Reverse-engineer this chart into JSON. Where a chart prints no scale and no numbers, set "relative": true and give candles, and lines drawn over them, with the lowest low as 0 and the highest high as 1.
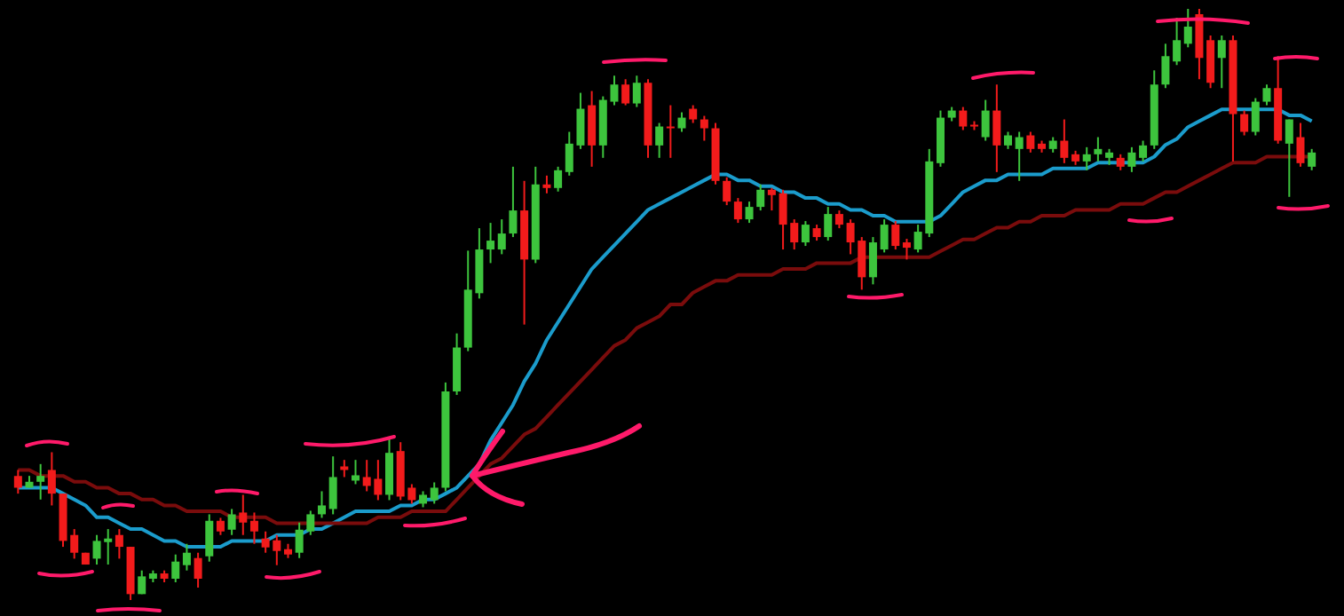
{
  "chart_data": {
    "type": "candlestick",
    "relative": true,
    "categories": [
      null,
      null,
      null,
      null,
      null,
      null,
      null,
      null,
      null,
      null,
      null,
      null,
      null,
      null,
      null,
      null,
      null,
      null,
      null,
      null,
      null,
      null,
      null,
      null,
      null,
      null,
      null,
      null,
      null,
      null,
      null,
      null,
      null,
      null,
      null,
      null,
      null,
      null,
      null,
      null,
      null,
      null,
      null,
      null,
      null,
      null,
      null,
      null,
      null,
      null,
      null,
      null,
      null,
      null,
      null,
      null,
      null,
      null,
      null,
      null,
      null,
      null,
      null,
      null,
      null,
      null,
      null,
      null,
      null,
      null,
      null,
      null,
      null,
      null,
      null,
      null,
      null,
      null,
      null,
      null,
      null,
      null,
      null,
      null,
      null,
      null,
      null,
      null,
      null,
      null,
      null,
      null,
      null,
      null,
      null,
      null,
      null,
      null,
      null,
      null,
      null,
      null,
      null,
      null,
      null,
      null,
      null,
      null,
      null,
      null,
      null,
      null,
      null,
      null,
      null,
      null
    ],
    "ohlc": [
      [
        0.21,
        0.22,
        0.18,
        0.19
      ],
      [
        0.19,
        0.21,
        0.19,
        0.2
      ],
      [
        0.2,
        0.23,
        0.17,
        0.21
      ],
      [
        0.22,
        0.25,
        0.16,
        0.18
      ],
      [
        0.18,
        0.18,
        0.09,
        0.1
      ],
      [
        0.11,
        0.12,
        0.07,
        0.08
      ],
      [
        0.08,
        0.08,
        0.06,
        0.06
      ],
      [
        0.07,
        0.11,
        0.06,
        0.1
      ],
      [
        0.098,
        0.12,
        0.06,
        0.104
      ],
      [
        0.11,
        0.12,
        0.07,
        0.09
      ],
      [
        0.09,
        0.09,
        0,
        0.01
      ],
      [
        0.01,
        0.05,
        0.01,
        0.04
      ],
      [
        0.036,
        0.05,
        0.03,
        0.045
      ],
      [
        0.045,
        0.05,
        0.03,
        0.036
      ],
      [
        0.036,
        0.077,
        0.03,
        0.065
      ],
      [
        0.059,
        0.095,
        0.05,
        0.08
      ],
      [
        0.071,
        0.08,
        0.021,
        0.036
      ],
      [
        0.074,
        0.145,
        0.065,
        0.134
      ],
      [
        0.134,
        0.139,
        0.11,
        0.116
      ],
      [
        0.119,
        0.154,
        0.11,
        0.145
      ],
      [
        0.148,
        0.178,
        0.11,
        0.131
      ],
      [
        0.134,
        0.148,
        0.095,
        0.116
      ],
      [
        0.104,
        0.116,
        0.08,
        0.089
      ],
      [
        0.101,
        0.11,
        0.059,
        0.083
      ],
      [
        0.086,
        0.095,
        0.071,
        0.077
      ],
      [
        0.08,
        0.131,
        0.071,
        0.119
      ],
      [
        0.116,
        0.151,
        0.11,
        0.145
      ],
      [
        0.145,
        0.184,
        0.139,
        0.16
      ],
      [
        0.154,
        0.243,
        0.145,
        0.208
      ],
      [
        0.226,
        0.237,
        0.208,
        0.22
      ],
      [
        0.202,
        0.237,
        0.196,
        0.211
      ],
      [
        0.208,
        0.237,
        0.184,
        0.193
      ],
      [
        0.205,
        0.237,
        0.169,
        0.178
      ],
      [
        0.178,
        0.273,
        0.169,
        0.249
      ],
      [
        0.252,
        0.267,
        0.169,
        0.175
      ],
      [
        0.19,
        0.196,
        0.163,
        0.169
      ],
      [
        0.163,
        0.184,
        0.157,
        0.178
      ],
      [
        0.169,
        0.199,
        0.163,
        0.19
      ],
      [
        0.19,
        0.368,
        0.184,
        0.353
      ],
      [
        0.353,
        0.451,
        0.347,
        0.427
      ],
      [
        0.427,
        0.591,
        0.421,
        0.525
      ],
      [
        0.519,
        0.629,
        0.51,
        0.593
      ],
      [
        0.593,
        0.638,
        0.57,
        0.608
      ],
      [
        0.593,
        0.644,
        0.585,
        0.62
      ],
      [
        0.62,
        0.733,
        0.614,
        0.659
      ],
      [
        0.659,
        0.709,
        0.466,
        0.576
      ],
      [
        0.576,
        0.733,
        0.57,
        0.703
      ],
      [
        0.703,
        0.718,
        0.688,
        0.697
      ],
      [
        0.697,
        0.733,
        0.691,
        0.727
      ],
      [
        0.724,
        0.792,
        0.718,
        0.772
      ],
      [
        0.769,
        0.858,
        0.763,
        0.831
      ],
      [
        0.837,
        0.861,
        0.733,
        0.769
      ],
      [
        0.769,
        0.852,
        0.748,
        0.846
      ],
      [
        0.843,
        0.887,
        0.837,
        0.872
      ],
      [
        0.872,
        0.881,
        0.837,
        0.84
      ],
      [
        0.84,
        0.887,
        0.834,
        0.875
      ],
      [
        0.875,
        0.881,
        0.748,
        0.769
      ],
      [
        0.769,
        0.807,
        0.748,
        0.801
      ],
      [
        0.801,
        0.837,
        0.748,
        0.798
      ],
      [
        0.798,
        0.825,
        0.792,
        0.816
      ],
      [
        0.831,
        0.837,
        0.807,
        0.813
      ],
      [
        0.813,
        0.819,
        0.777,
        0.798
      ],
      [
        0.798,
        0.807,
        0.703,
        0.709
      ],
      [
        0.709,
        0.715,
        0.668,
        0.674
      ],
      [
        0.674,
        0.68,
        0.638,
        0.644
      ],
      [
        0.644,
        0.674,
        0.638,
        0.665
      ],
      [
        0.665,
        0.703,
        0.659,
        0.694
      ],
      [
        0.694,
        0.697,
        0.659,
        0.685
      ],
      [
        0.688,
        0.694,
        0.593,
        0.635
      ],
      [
        0.638,
        0.644,
        0.593,
        0.605
      ],
      [
        0.605,
        0.641,
        0.599,
        0.635
      ],
      [
        0.629,
        0.635,
        0.608,
        0.614
      ],
      [
        0.614,
        0.665,
        0.608,
        0.653
      ],
      [
        0.653,
        0.659,
        0.629,
        0.635
      ],
      [
        0.638,
        0.644,
        0.585,
        0.605
      ],
      [
        0.608,
        0.614,
        0.525,
        0.546
      ],
      [
        0.546,
        0.614,
        0.534,
        0.605
      ],
      [
        0.593,
        0.644,
        0.588,
        0.635
      ],
      [
        0.635,
        0.641,
        0.593,
        0.599
      ],
      [
        0.605,
        0.611,
        0.576,
        0.596
      ],
      [
        0.593,
        0.635,
        0.588,
        0.623
      ],
      [
        0.62,
        0.763,
        0.614,
        0.742
      ],
      [
        0.739,
        0.828,
        0.733,
        0.816
      ],
      [
        0.816,
        0.834,
        0.81,
        0.828
      ],
      [
        0.828,
        0.834,
        0.795,
        0.801
      ],
      [
        0.804,
        0.81,
        0.795,
        0.801
      ],
      [
        0.783,
        0.846,
        0.777,
        0.828
      ],
      [
        0.828,
        0.872,
        0.724,
        0.769
      ],
      [
        0.769,
        0.792,
        0.763,
        0.786
      ],
      [
        0.763,
        0.792,
        0.709,
        0.783
      ],
      [
        0.786,
        0.792,
        0.757,
        0.763
      ],
      [
        0.772,
        0.777,
        0.757,
        0.763
      ],
      [
        0.763,
        0.783,
        0.757,
        0.777
      ],
      [
        0.777,
        0.813,
        0.739,
        0.748
      ],
      [
        0.754,
        0.76,
        0.736,
        0.742
      ],
      [
        0.742,
        0.766,
        0.727,
        0.754
      ],
      [
        0.754,
        0.783,
        0.742,
        0.763
      ],
      [
        0.748,
        0.763,
        0.736,
        0.757
      ],
      [
        0.748,
        0.754,
        0.727,
        0.733
      ],
      [
        0.733,
        0.766,
        0.724,
        0.757
      ],
      [
        0.748,
        0.777,
        0.742,
        0.769
      ],
      [
        0.769,
        0.896,
        0.763,
        0.872
      ],
      [
        0.872,
        0.941,
        0.866,
        0.92
      ],
      [
        0.911,
        0.985,
        0.905,
        0.947
      ],
      [
        0.941,
        1,
        0.935,
        0.97
      ],
      [
        0.991,
        1,
        0.881,
        0.917
      ],
      [
        0.947,
        0.955,
        0.866,
        0.875
      ],
      [
        0.917,
        0.955,
        0.866,
        0.947
      ],
      [
        0.947,
        0.955,
        0.742,
        0.822
      ],
      [
        0.822,
        0.828,
        0.786,
        0.792
      ],
      [
        0.792,
        0.849,
        0.786,
        0.843
      ],
      [
        0.843,
        0.872,
        0.837,
        0.866
      ],
      [
        0.866,
        0.92,
        0.772,
        0.777
      ],
      [
        0.772,
        0.813,
        0.682,
        0.813
      ],
      [
        0.783,
        0.807,
        0.733,
        0.739
      ],
      [
        0.733,
        0.763,
        0.727,
        0.757
      ]
    ],
    "colors": [
      "#f21b1b",
      "#3dc43d",
      "#3dc43d",
      "#f21b1b",
      "#f21b1b",
      "#f21b1b",
      "#f21b1b",
      "#3dc43d",
      "#3dc43d",
      "#f21b1b",
      "#f21b1b",
      "#3dc43d",
      "#3dc43d",
      "#f21b1b",
      "#3dc43d",
      "#3dc43d",
      "#f21b1b",
      "#3dc43d",
      "#f21b1b",
      "#3dc43d",
      "#f21b1b",
      "#f21b1b",
      "#f21b1b",
      "#f21b1b",
      "#f21b1b",
      "#3dc43d",
      "#3dc43d",
      "#3dc43d",
      "#3dc43d",
      "#f21b1b",
      "#3dc43d",
      "#f21b1b",
      "#f21b1b",
      "#3dc43d",
      "#f21b1b",
      "#f21b1b",
      "#3dc43d",
      "#3dc43d",
      "#3dc43d",
      "#3dc43d",
      "#3dc43d",
      "#3dc43d",
      "#3dc43d",
      "#3dc43d",
      "#3dc43d",
      "#f21b1b",
      "#3dc43d",
      "#f21b1b",
      "#3dc43d",
      "#3dc43d",
      "#3dc43d",
      "#f21b1b",
      "#3dc43d",
      "#3dc43d",
      "#f21b1b",
      "#3dc43d",
      "#f21b1b",
      "#3dc43d",
      "#f21b1b",
      "#3dc43d",
      "#f21b1b",
      "#f21b1b",
      "#f21b1b",
      "#f21b1b",
      "#f21b1b",
      "#3dc43d",
      "#3dc43d",
      "#f21b1b",
      "#f21b1b",
      "#f21b1b",
      "#3dc43d",
      "#f21b1b",
      "#3dc43d",
      "#f21b1b",
      "#f21b1b",
      "#f21b1b",
      "#3dc43d",
      "#3dc43d",
      "#f21b1b",
      "#f21b1b",
      "#3dc43d",
      "#3dc43d",
      "#3dc43d",
      "#3dc43d",
      "#f21b1b",
      "#f21b1b",
      "#3dc43d",
      "#f21b1b",
      "#3dc43d",
      "#3dc43d",
      "#f21b1b",
      "#f21b1b",
      "#3dc43d",
      "#f21b1b",
      "#f21b1b",
      "#3dc43d",
      "#3dc43d",
      "#3dc43d",
      "#f21b1b",
      "#3dc43d",
      "#3dc43d",
      "#3dc43d",
      "#3dc43d",
      "#3dc43d",
      "#3dc43d",
      "#f21b1b",
      "#f21b1b",
      "#3dc43d",
      "#f21b1b",
      "#f21b1b",
      "#3dc43d",
      "#3dc43d",
      "#f21b1b",
      "#3dc43d",
      "#f21b1b",
      "#3dc43d"
    ],
    "series": [
      {
        "type": "line",
        "color": "#1b9ccc",
        "values": [
          0.19,
          0.19,
          0.19,
          0.19,
          0.18,
          0.17,
          0.16,
          0.14,
          0.14,
          0.13,
          0.12,
          0.12,
          0.11,
          0.1,
          0.1,
          0.09,
          0.09,
          0.09,
          0.09,
          0.1,
          0.1,
          0.1,
          0.1,
          0.11,
          0.11,
          0.11,
          0.12,
          0.12,
          0.13,
          0.14,
          0.15,
          0.15,
          0.15,
          0.15,
          0.16,
          0.16,
          0.17,
          0.17,
          0.18,
          0.19,
          0.21,
          0.23,
          0.27,
          0.3,
          0.33,
          0.37,
          0.4,
          0.44,
          0.47,
          0.5,
          0.53,
          0.56,
          0.58,
          0.6,
          0.62,
          0.64,
          0.66,
          0.67,
          0.68,
          0.69,
          0.7,
          0.71,
          0.72,
          0.72,
          0.71,
          0.71,
          0.7,
          0.7,
          0.69,
          0.69,
          0.68,
          0.68,
          0.67,
          0.67,
          0.66,
          0.66,
          0.65,
          0.65,
          0.64,
          0.64,
          0.64,
          0.64,
          0.65,
          0.67,
          0.69,
          0.7,
          0.71,
          0.71,
          0.72,
          0.72,
          0.72,
          0.72,
          0.73,
          0.73,
          0.73,
          0.73,
          0.74,
          0.74,
          0.74,
          0.74,
          0.74,
          0.75,
          0.77,
          0.78,
          0.8,
          0.81,
          0.82,
          0.83,
          0.83,
          0.83,
          0.83,
          0.83,
          0.83,
          0.82,
          0.82,
          0.81
        ]
      },
      {
        "type": "line",
        "color": "#7a0c0c",
        "values": [
          0.22,
          0.22,
          0.21,
          0.21,
          0.21,
          0.2,
          0.2,
          0.19,
          0.19,
          0.18,
          0.18,
          0.17,
          0.17,
          0.16,
          0.16,
          0.15,
          0.15,
          0.15,
          0.15,
          0.14,
          0.14,
          0.14,
          0.14,
          0.13,
          0.13,
          0.13,
          0.13,
          0.13,
          0.13,
          0.13,
          0.13,
          0.13,
          0.14,
          0.14,
          0.14,
          0.15,
          0.15,
          0.15,
          0.15,
          0.17,
          0.19,
          0.21,
          0.23,
          0.24,
          0.26,
          0.28,
          0.29,
          0.31,
          0.33,
          0.35,
          0.37,
          0.39,
          0.41,
          0.43,
          0.44,
          0.46,
          0.47,
          0.48,
          0.5,
          0.5,
          0.52,
          0.53,
          0.54,
          0.54,
          0.55,
          0.55,
          0.55,
          0.55,
          0.56,
          0.56,
          0.56,
          0.57,
          0.57,
          0.57,
          0.57,
          0.58,
          0.58,
          0.58,
          0.58,
          0.58,
          0.58,
          0.58,
          0.59,
          0.6,
          0.61,
          0.61,
          0.62,
          0.63,
          0.63,
          0.64,
          0.64,
          0.65,
          0.65,
          0.65,
          0.66,
          0.66,
          0.66,
          0.66,
          0.67,
          0.67,
          0.67,
          0.68,
          0.69,
          0.69,
          0.7,
          0.71,
          0.72,
          0.73,
          0.74,
          0.74,
          0.74,
          0.75,
          0.75,
          0.75,
          0.75,
          0.75
        ]
      }
    ]
  }
}
